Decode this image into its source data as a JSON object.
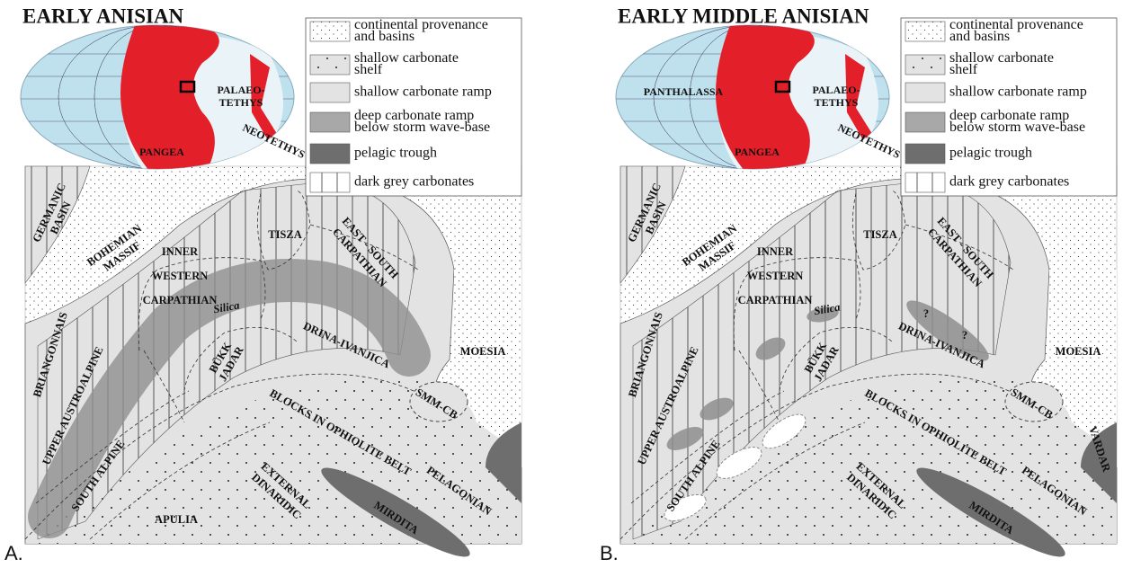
{
  "panels": [
    {
      "label": "A.",
      "title": "EARLY ANISIAN",
      "legend": [
        [
          "continental provenance",
          "and basins"
        ],
        [
          "shallow carbonate",
          "shelf"
        ],
        [
          "shallow carbonate ramp"
        ],
        [
          "deep carbonate ramp",
          "below storm wave-base"
        ],
        [
          "pelagic trough"
        ],
        [
          "dark grey carbonates"
        ]
      ],
      "globe_labels": [
        [
          "PALAEO-",
          "TETHYS"
        ],
        [
          "NEOTETHYS"
        ],
        [
          "PANGEA"
        ]
      ],
      "map_labels": [
        [
          "GERMANIC",
          "BASIN"
        ],
        [
          "BOHEMIAN",
          "MASSIF"
        ],
        [
          "TISZA"
        ],
        [
          "EAST - SOUTH",
          "CARPATHIAN"
        ],
        [
          "INNER",
          "WESTERN",
          "CARPATHIAN"
        ],
        [
          "Silica"
        ],
        [
          "BRIANGONNAIS"
        ],
        [
          "MOESIA"
        ],
        [
          "DRINA-IVANJICA"
        ],
        [
          "BÜKK",
          "JADAR"
        ],
        [
          "UPPER AUSTROALPINE"
        ],
        [
          "SMM-CB"
        ],
        [
          "BLOCKS IN OPHIOLITE BELT"
        ],
        [
          "SOUTH ALPINE"
        ],
        [
          "EXTERNAL",
          "DINARIDIC"
        ],
        [
          "APULIA"
        ],
        [
          "PELAGONIAN"
        ],
        [
          "MIRDITA"
        ]
      ]
    },
    {
      "label": "B.",
      "title": "EARLY  MIDDLE ANISIAN",
      "legend": [
        [
          "continental provenance",
          "and basins"
        ],
        [
          "shallow carbonate",
          "shelf"
        ],
        [
          "shallow carbonate ramp"
        ],
        [
          "deep carbonate ramp",
          "below storm wave-base"
        ],
        [
          "pelagic trough"
        ],
        [
          "dark grey carbonates"
        ]
      ],
      "globe_labels": [
        [
          "PALAEO-",
          "TETHYS"
        ],
        [
          "NEOTETHYS"
        ],
        [
          "PANGEA"
        ],
        [
          "PANTHALASSA"
        ]
      ],
      "map_labels": [
        [
          "GERMANIC",
          "BASIN"
        ],
        [
          "BOHEMIAN",
          "MASSIF"
        ],
        [
          "TISZA"
        ],
        [
          "EAST - SOUTH",
          "CARPATHIAN"
        ],
        [
          "INNER",
          "WESTERN",
          "CARPATHIAN"
        ],
        [
          "Silica"
        ],
        [
          "BRIANGONNAIS"
        ],
        [
          "MOESIA"
        ],
        [
          "DRINA-IVANJICA"
        ],
        [
          "BÜKK",
          "JADAR"
        ],
        [
          "UPPER AUSTROALPINE"
        ],
        [
          "SMM-CB"
        ],
        [
          "BLOCKS IN OPHIOLITE BELT"
        ],
        [
          "SOUTH ALPINE"
        ],
        [
          "EXTERNAL",
          "DINARIDIC"
        ],
        [
          "VARDAR"
        ],
        [
          "PELAGONIAN"
        ],
        [
          "MIRDITA"
        ],
        [
          "?"
        ],
        [
          "?"
        ]
      ]
    }
  ]
}
